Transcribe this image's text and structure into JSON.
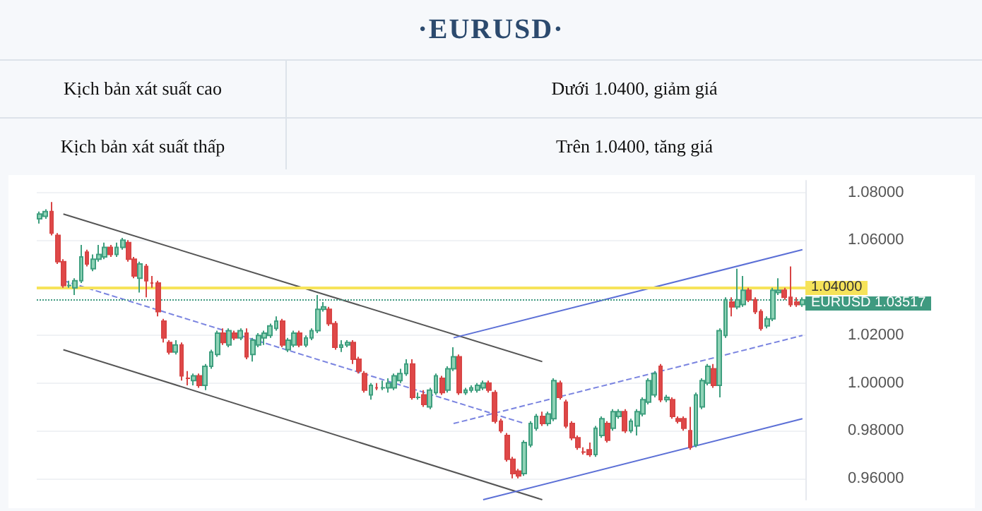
{
  "chart_data": {
    "type": "candlestick",
    "title": "·EURUSD·",
    "annotations": [
      "Kịch bản xát suất cao",
      "Dưới 1.0400, giảm giá",
      "Kịch bản xát suất thấp",
      "Trên 1.0400, tăng giá"
    ],
    "categories": [
      null,
      null,
      null,
      null,
      null,
      null,
      null,
      null,
      null,
      null,
      null,
      null,
      null,
      null,
      null,
      null,
      null,
      null,
      null,
      null,
      null,
      null,
      null,
      null,
      null,
      null,
      null,
      null,
      null,
      null,
      null,
      null,
      null,
      null,
      null,
      null,
      null,
      null,
      null,
      null,
      null,
      null,
      null,
      null,
      null,
      null,
      null,
      null,
      null,
      null,
      null,
      null,
      null,
      null,
      null,
      null,
      null,
      null,
      null,
      null,
      null,
      null,
      null,
      null,
      null,
      null,
      null,
      null,
      null,
      null,
      null,
      null,
      null,
      null,
      null,
      null,
      null,
      null,
      null,
      null,
      null,
      null,
      null,
      null,
      null,
      null,
      null,
      null,
      null,
      null,
      null,
      null,
      null,
      null,
      null,
      null,
      null,
      null,
      null,
      null,
      null,
      null,
      null,
      null,
      null,
      null,
      null,
      null,
      null,
      null,
      null,
      null,
      null,
      null,
      null,
      null,
      null,
      null,
      null,
      null,
      null,
      null,
      null,
      null,
      null,
      null,
      null,
      null,
      null,
      null
    ],
    "ohlc": [
      [
        1.069,
        1.072,
        1.067,
        1.071
      ],
      [
        1.07,
        1.073,
        1.069,
        1.072
      ],
      [
        1.072,
        1.076,
        1.062,
        1.063
      ],
      [
        1.062,
        1.063,
        1.05,
        1.051
      ],
      [
        1.051,
        1.052,
        1.04,
        1.041
      ],
      [
        1.041,
        1.043,
        1.04,
        1.041
      ],
      [
        1.04,
        1.044,
        1.037,
        1.043
      ],
      [
        1.043,
        1.058,
        1.042,
        1.053
      ],
      [
        1.055,
        1.056,
        1.049,
        1.05
      ],
      [
        1.048,
        1.054,
        1.047,
        1.052
      ],
      [
        1.052,
        1.058,
        1.051,
        1.054
      ],
      [
        1.053,
        1.059,
        1.052,
        1.057
      ],
      [
        1.057,
        1.058,
        1.053,
        1.054
      ],
      [
        1.054,
        1.059,
        1.053,
        1.057
      ],
      [
        1.057,
        1.061,
        1.056,
        1.06
      ],
      [
        1.059,
        1.06,
        1.051,
        1.052
      ],
      [
        1.052,
        1.053,
        1.044,
        1.045
      ],
      [
        1.044,
        1.051,
        1.038,
        1.05
      ],
      [
        1.049,
        1.05,
        1.036,
        1.043
      ],
      [
        1.042,
        1.045,
        1.04,
        1.042
      ],
      [
        1.042,
        1.043,
        1.028,
        1.03
      ],
      [
        1.026,
        1.027,
        1.017,
        1.019
      ],
      [
        1.017,
        1.018,
        1.012,
        1.013
      ],
      [
        1.013,
        1.018,
        1.012,
        1.016
      ],
      [
        1.016,
        1.017,
        1.001,
        1.003
      ],
      [
        1.002,
        1.005,
        0.999,
        1.002
      ],
      [
        1.001,
        1.004,
        0.999,
        1.003
      ],
      [
        1.003,
        1.004,
        0.998,
        0.999
      ],
      [
        0.999,
        1.008,
        0.997,
        1.007
      ],
      [
        1.007,
        1.014,
        1.006,
        1.013
      ],
      [
        1.012,
        1.022,
        1.011,
        1.021
      ],
      [
        1.021,
        1.023,
        1.016,
        1.017
      ],
      [
        1.016,
        1.023,
        1.015,
        1.022
      ],
      [
        1.021,
        1.022,
        1.018,
        1.019
      ],
      [
        1.019,
        1.023,
        1.018,
        1.022
      ],
      [
        1.021,
        1.023,
        1.01,
        1.011
      ],
      [
        1.012,
        1.019,
        1.009,
        1.018
      ],
      [
        1.016,
        1.021,
        1.015,
        1.02
      ],
      [
        1.019,
        1.022,
        1.016,
        1.021
      ],
      [
        1.02,
        1.025,
        1.019,
        1.024
      ],
      [
        1.023,
        1.028,
        1.022,
        1.026
      ],
      [
        1.026,
        1.027,
        1.015,
        1.016
      ],
      [
        1.014,
        1.019,
        1.013,
        1.018
      ],
      [
        1.016,
        1.022,
        1.015,
        1.021
      ],
      [
        1.021,
        1.022,
        1.015,
        1.016
      ],
      [
        1.016,
        1.02,
        1.015,
        1.019
      ],
      [
        1.019,
        1.023,
        1.018,
        1.022
      ],
      [
        1.022,
        1.037,
        1.021,
        1.031
      ],
      [
        1.031,
        1.034,
        1.03,
        1.032
      ],
      [
        1.031,
        1.032,
        1.024,
        1.025
      ],
      [
        1.025,
        1.026,
        1.014,
        1.015
      ],
      [
        1.015,
        1.018,
        1.013,
        1.016
      ],
      [
        1.016,
        1.018,
        1.015,
        1.017
      ],
      [
        1.017,
        1.018,
        1.008,
        1.01
      ],
      [
        1.01,
        1.011,
        1.004,
        1.005
      ],
      [
        1.004,
        1.005,
        0.996,
        0.997
      ],
      [
        0.995,
        1.0,
        0.993,
        0.999
      ],
      [
        0.998,
        1.0,
        0.997,
        0.998
      ],
      [
        0.998,
        1.001,
        0.997,
        0.998
      ],
      [
        0.998,
        1.002,
        0.996,
        1.0
      ],
      [
        0.998,
        1.004,
        0.997,
        1.003
      ],
      [
        1.001,
        1.006,
        1.0,
        1.004
      ],
      [
        1.004,
        1.01,
        1.003,
        1.008
      ],
      [
        1.008,
        1.01,
        0.993,
        0.994
      ],
      [
        0.994,
        0.996,
        0.993,
        0.994
      ],
      [
        0.995,
        0.997,
        0.99,
        0.991
      ],
      [
        0.99,
        0.998,
        0.989,
        0.997
      ],
      [
        0.996,
        1.004,
        0.995,
        1.003
      ],
      [
        1.002,
        1.003,
        0.995,
        0.996
      ],
      [
        0.997,
        1.007,
        0.996,
        1.006
      ],
      [
        1.006,
        1.015,
        1.005,
        1.011
      ],
      [
        1.011,
        1.012,
        0.995,
        0.996
      ],
      [
        0.996,
        0.998,
        0.995,
        0.997
      ],
      [
        0.997,
        0.999,
        0.996,
        0.998
      ],
      [
        0.997,
        1.0,
        0.996,
        0.999
      ],
      [
        0.998,
        1.001,
        0.997,
        1.0
      ],
      [
        1.0,
        1.001,
        0.996,
        0.997
      ],
      [
        0.996,
        0.997,
        0.983,
        0.984
      ],
      [
        0.984,
        0.985,
        0.979,
        0.98
      ],
      [
        0.978,
        0.979,
        0.967,
        0.968
      ],
      [
        0.968,
        0.969,
        0.96,
        0.962
      ],
      [
        0.963,
        0.964,
        0.96,
        0.961
      ],
      [
        0.962,
        0.976,
        0.961,
        0.975
      ],
      [
        0.974,
        0.984,
        0.973,
        0.983
      ],
      [
        0.981,
        0.987,
        0.98,
        0.986
      ],
      [
        0.986,
        0.988,
        0.982,
        0.983
      ],
      [
        0.983,
        0.988,
        0.982,
        0.987
      ],
      [
        0.985,
        1.002,
        0.984,
        1.001
      ],
      [
        1.0,
        1.001,
        0.993,
        0.994
      ],
      [
        0.992,
        0.993,
        0.981,
        0.982
      ],
      [
        0.983,
        0.984,
        0.976,
        0.977
      ],
      [
        0.977,
        0.978,
        0.972,
        0.973
      ],
      [
        0.971,
        0.973,
        0.97,
        0.971
      ],
      [
        0.972,
        0.975,
        0.969,
        0.97
      ],
      [
        0.97,
        0.982,
        0.969,
        0.981
      ],
      [
        0.978,
        0.986,
        0.977,
        0.985
      ],
      [
        0.983,
        0.984,
        0.975,
        0.976
      ],
      [
        0.981,
        0.989,
        0.98,
        0.988
      ],
      [
        0.986,
        0.989,
        0.985,
        0.988
      ],
      [
        0.988,
        0.989,
        0.979,
        0.98
      ],
      [
        0.98,
        0.985,
        0.979,
        0.984
      ],
      [
        0.982,
        0.989,
        0.978,
        0.988
      ],
      [
        0.987,
        0.994,
        0.986,
        0.993
      ],
      [
        0.992,
        1.002,
        0.991,
        1.001
      ],
      [
        0.995,
        1.005,
        0.994,
        1.004
      ],
      [
        1.007,
        1.008,
        0.992,
        0.993
      ],
      [
        0.993,
        0.995,
        0.992,
        0.994
      ],
      [
        0.993,
        0.994,
        0.985,
        0.986
      ],
      [
        0.985,
        0.986,
        0.983,
        0.984
      ],
      [
        0.985,
        0.986,
        0.98,
        0.981
      ],
      [
        0.98,
        0.99,
        0.972,
        0.973
      ],
      [
        0.974,
        0.996,
        0.973,
        0.995
      ],
      [
        0.99,
        1.002,
        0.989,
        1.001
      ],
      [
        1.0,
        1.008,
        0.999,
        1.007
      ],
      [
        1.006,
        1.008,
        0.998,
        0.999
      ],
      [
        0.999,
        1.023,
        0.994,
        1.022
      ],
      [
        1.02,
        1.036,
        1.019,
        1.035
      ],
      [
        1.034,
        1.036,
        1.028,
        1.032
      ],
      [
        1.032,
        1.048,
        1.031,
        1.035
      ],
      [
        1.033,
        1.045,
        1.032,
        1.039
      ],
      [
        1.039,
        1.04,
        1.034,
        1.035
      ],
      [
        1.035,
        1.036,
        1.029,
        1.03
      ],
      [
        1.03,
        1.031,
        1.022,
        1.023
      ],
      [
        1.024,
        1.028,
        1.023,
        1.027
      ],
      [
        1.027,
        1.04,
        1.026,
        1.039
      ],
      [
        1.038,
        1.044,
        1.037,
        1.039
      ],
      [
        1.039,
        1.04,
        1.035,
        1.036
      ],
      [
        1.036,
        1.049,
        1.032,
        1.033
      ],
      [
        1.034,
        1.036,
        1.032,
        1.033
      ],
      [
        1.033,
        1.036,
        1.032,
        1.035
      ]
    ],
    "series": [
      {
        "type": "line",
        "color": "#555555",
        "line_style": "solid",
        "values": [
          null,
          null,
          null,
          null,
          1.071,
          null,
          null,
          null,
          null,
          null,
          null,
          null,
          null,
          null,
          null,
          null,
          null,
          null,
          null,
          null,
          null,
          null,
          null,
          null,
          null,
          null,
          null,
          null,
          null,
          null,
          null,
          null,
          null,
          null,
          null,
          null,
          null,
          null,
          null,
          null,
          null,
          null,
          null,
          null,
          null,
          null,
          null,
          null,
          null,
          null,
          null,
          null,
          null,
          null,
          null,
          null,
          null,
          null,
          null,
          null,
          null,
          null,
          null,
          null,
          null,
          null,
          null,
          null,
          null,
          null,
          null,
          null,
          null,
          null,
          null,
          null,
          null,
          null,
          null,
          null,
          null,
          null,
          null,
          null,
          null,
          1.009,
          null,
          null,
          null,
          null,
          null,
          null,
          null,
          null,
          null,
          null,
          null,
          null,
          null,
          null,
          null,
          null,
          null,
          null,
          null,
          null,
          null,
          null,
          null,
          null,
          null,
          null,
          null,
          null,
          null,
          null,
          null,
          null,
          null,
          null,
          null,
          null,
          null,
          null,
          null,
          null,
          null,
          null,
          null,
          null
        ]
      },
      {
        "type": "line",
        "color": "#7a84e0",
        "line_style": "dashed",
        "values": [
          null,
          null,
          null,
          null,
          1.043,
          null,
          null,
          null,
          null,
          null,
          null,
          null,
          null,
          null,
          null,
          null,
          null,
          null,
          null,
          null,
          null,
          null,
          null,
          null,
          null,
          null,
          null,
          null,
          null,
          null,
          null,
          null,
          null,
          null,
          null,
          null,
          null,
          null,
          null,
          null,
          null,
          null,
          null,
          null,
          null,
          null,
          null,
          null,
          null,
          null,
          null,
          null,
          null,
          null,
          null,
          null,
          null,
          null,
          null,
          null,
          null,
          null,
          null,
          null,
          null,
          null,
          null,
          null,
          null,
          null,
          null,
          null,
          null,
          null,
          null,
          null,
          null,
          null,
          null,
          null,
          null,
          null,
          0.983,
          null,
          null,
          null,
          null,
          null,
          null,
          null,
          null,
          null,
          null,
          null,
          null,
          null,
          null,
          null,
          null,
          null,
          null,
          null,
          null,
          null,
          null,
          null,
          null,
          null,
          null,
          null,
          null,
          null,
          null,
          null,
          null,
          null,
          null,
          null,
          null,
          null,
          null,
          null,
          null,
          null,
          null,
          null,
          null,
          null,
          null,
          null
        ]
      },
      {
        "type": "line",
        "color": "#555555",
        "line_style": "solid",
        "values": [
          null,
          null,
          null,
          null,
          1.014,
          null,
          null,
          null,
          null,
          null,
          null,
          null,
          null,
          null,
          null,
          null,
          null,
          null,
          null,
          null,
          null,
          null,
          null,
          null,
          null,
          null,
          null,
          null,
          null,
          null,
          null,
          null,
          null,
          null,
          null,
          null,
          null,
          null,
          null,
          null,
          null,
          null,
          null,
          null,
          null,
          null,
          null,
          null,
          null,
          null,
          null,
          null,
          null,
          null,
          null,
          null,
          null,
          null,
          null,
          null,
          null,
          null,
          null,
          null,
          null,
          null,
          null,
          null,
          null,
          null,
          null,
          null,
          null,
          null,
          null,
          null,
          null,
          null,
          null,
          null,
          null,
          null,
          null,
          null,
          null,
          0.951,
          null,
          null,
          null,
          null,
          null,
          null,
          null,
          null,
          null,
          null,
          null,
          null,
          null,
          null,
          null,
          null,
          null,
          null,
          null,
          null,
          null,
          null,
          null,
          null,
          null,
          null,
          null,
          null,
          null,
          null,
          null,
          null,
          null,
          null,
          null,
          null,
          null,
          null,
          null,
          null,
          null,
          null,
          null,
          null
        ]
      },
      {
        "type": "line",
        "color": "#5b6fd6",
        "line_style": "solid",
        "values": [
          null,
          null,
          null,
          null,
          null,
          null,
          null,
          null,
          null,
          null,
          null,
          null,
          null,
          null,
          null,
          null,
          null,
          null,
          null,
          null,
          null,
          null,
          null,
          null,
          null,
          null,
          null,
          null,
          null,
          null,
          null,
          null,
          null,
          null,
          null,
          null,
          null,
          null,
          null,
          null,
          null,
          null,
          null,
          null,
          null,
          null,
          null,
          null,
          null,
          null,
          null,
          null,
          null,
          null,
          null,
          null,
          null,
          null,
          null,
          null,
          null,
          null,
          null,
          null,
          null,
          null,
          null,
          null,
          null,
          null,
          1.019,
          null,
          null,
          null,
          null,
          null,
          null,
          null,
          null,
          null,
          null,
          null,
          null,
          null,
          null,
          null,
          null,
          null,
          null,
          null,
          null,
          null,
          null,
          null,
          null,
          null,
          null,
          null,
          null,
          null,
          null,
          null,
          null,
          null,
          null,
          null,
          null,
          null,
          null,
          null,
          null,
          null,
          null,
          null,
          null,
          null,
          null,
          null,
          null,
          null,
          null,
          null,
          null,
          null,
          null,
          null,
          null,
          null,
          null,
          1.056
        ]
      },
      {
        "type": "line",
        "color": "#7a84e0",
        "line_style": "dashed",
        "values": [
          null,
          null,
          null,
          null,
          null,
          null,
          null,
          null,
          null,
          null,
          null,
          null,
          null,
          null,
          null,
          null,
          null,
          null,
          null,
          null,
          null,
          null,
          null,
          null,
          null,
          null,
          null,
          null,
          null,
          null,
          null,
          null,
          null,
          null,
          null,
          null,
          null,
          null,
          null,
          null,
          null,
          null,
          null,
          null,
          null,
          null,
          null,
          null,
          null,
          null,
          null,
          null,
          null,
          null,
          null,
          null,
          null,
          null,
          null,
          null,
          null,
          null,
          null,
          null,
          null,
          null,
          null,
          null,
          null,
          null,
          0.983,
          null,
          null,
          null,
          null,
          null,
          null,
          null,
          null,
          null,
          null,
          null,
          null,
          null,
          null,
          null,
          null,
          null,
          null,
          null,
          null,
          null,
          null,
          null,
          null,
          null,
          null,
          null,
          null,
          null,
          null,
          null,
          null,
          null,
          null,
          null,
          null,
          null,
          null,
          null,
          null,
          null,
          null,
          null,
          null,
          null,
          null,
          null,
          null,
          null,
          null,
          null,
          null,
          null,
          null,
          null,
          null,
          null,
          null,
          1.02
        ]
      },
      {
        "type": "line",
        "color": "#5b6fd6",
        "line_style": "solid",
        "values": [
          null,
          null,
          null,
          null,
          null,
          null,
          null,
          null,
          null,
          null,
          null,
          null,
          null,
          null,
          null,
          null,
          null,
          null,
          null,
          null,
          null,
          null,
          null,
          null,
          null,
          null,
          null,
          null,
          null,
          null,
          null,
          null,
          null,
          null,
          null,
          null,
          null,
          null,
          null,
          null,
          null,
          null,
          null,
          null,
          null,
          null,
          null,
          null,
          null,
          null,
          null,
          null,
          null,
          null,
          null,
          null,
          null,
          null,
          null,
          null,
          null,
          null,
          null,
          null,
          null,
          null,
          null,
          null,
          null,
          null,
          null,
          null,
          null,
          null,
          null,
          0.951,
          null,
          null,
          null,
          null,
          null,
          null,
          null,
          null,
          null,
          null,
          null,
          null,
          null,
          null,
          null,
          null,
          null,
          null,
          null,
          null,
          null,
          null,
          null,
          null,
          null,
          null,
          null,
          null,
          null,
          null,
          null,
          null,
          null,
          null,
          null,
          null,
          null,
          null,
          null,
          null,
          null,
          null,
          null,
          null,
          null,
          null,
          null,
          null,
          null,
          null,
          null,
          null,
          null,
          0.985
        ]
      }
    ],
    "ylim": [
      0.951,
      1.085
    ],
    "yticks": [
      {
        "value": 0.96,
        "label": "0.96000"
      },
      {
        "value": 0.98,
        "label": "0.98000"
      },
      {
        "value": 1.0,
        "label": "1.00000"
      },
      {
        "value": 1.02,
        "label": "1.02000"
      },
      {
        "value": 1.06,
        "label": "1.06000"
      },
      {
        "value": 1.08,
        "label": "1.08000"
      }
    ],
    "ref_lines": [
      {
        "axis": "y",
        "value": 1.04,
        "label": "1.04000",
        "color": "#f6e35a",
        "line_style": "solid"
      },
      {
        "axis": "y",
        "value": 1.03517,
        "label": "EURUSD 1.03517",
        "color": "#3f9a80",
        "line_style": "dotted"
      }
    ],
    "grid": "y",
    "tick_labels": "y"
  }
}
